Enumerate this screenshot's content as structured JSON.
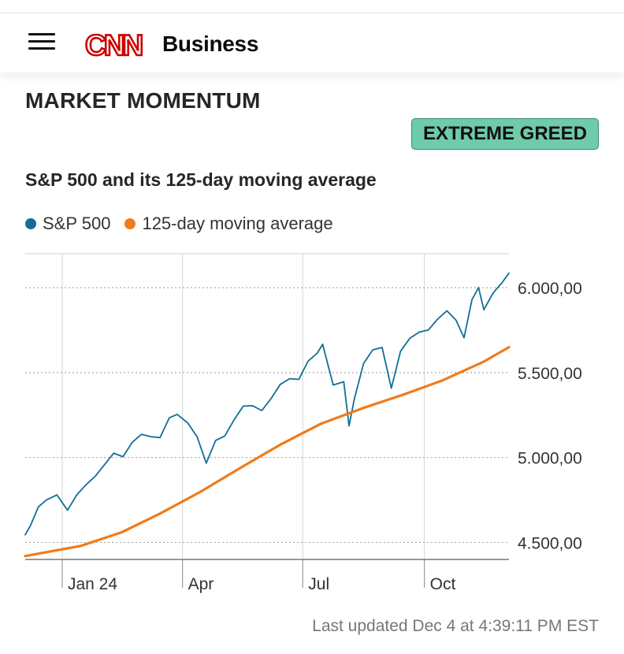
{
  "header": {
    "menu_icon": "hamburger-menu-icon",
    "logo_icon": "cnn-logo-icon",
    "logo_text": "CNN",
    "brand": "Business",
    "logo_color": "#cc0000"
  },
  "section": {
    "title": "MARKET MOMENTUM",
    "rating": "EXTREME GREED",
    "rating_color": "#6fcba9"
  },
  "chart_data": {
    "type": "line",
    "title": "S&P 500 and its 125-day moving average",
    "xlabel": "",
    "ylabel": "",
    "x_ticks": [
      "Jan 24",
      "Apr",
      "Jul",
      "Oct"
    ],
    "y_ticks": [
      "4.500,00",
      "5.000,00",
      "5.500,00",
      "6.000,00"
    ],
    "y_tick_values": [
      4500,
      5000,
      5500,
      6000
    ],
    "ylim": [
      4400,
      6200
    ],
    "x_range": [
      "2023-12-04",
      "2024-12-04"
    ],
    "grid": true,
    "legend_position": "top-left",
    "series": [
      {
        "name": "S&P 500",
        "color": "#136e96",
        "x": [
          "2023-12-04",
          "2023-12-08",
          "2023-12-14",
          "2023-12-20",
          "2023-12-28",
          "2024-01-05",
          "2024-01-12",
          "2024-01-19",
          "2024-01-26",
          "2024-02-02",
          "2024-02-09",
          "2024-02-16",
          "2024-02-23",
          "2024-03-01",
          "2024-03-08",
          "2024-03-15",
          "2024-03-22",
          "2024-03-28",
          "2024-04-05",
          "2024-04-12",
          "2024-04-19",
          "2024-04-26",
          "2024-05-03",
          "2024-05-10",
          "2024-05-17",
          "2024-05-24",
          "2024-05-31",
          "2024-06-07",
          "2024-06-14",
          "2024-06-21",
          "2024-06-28",
          "2024-07-05",
          "2024-07-12",
          "2024-07-16",
          "2024-07-24",
          "2024-08-01",
          "2024-08-05",
          "2024-08-09",
          "2024-08-16",
          "2024-08-23",
          "2024-08-30",
          "2024-09-06",
          "2024-09-13",
          "2024-09-20",
          "2024-09-27",
          "2024-10-04",
          "2024-10-11",
          "2024-10-18",
          "2024-10-25",
          "2024-10-31",
          "2024-11-06",
          "2024-11-11",
          "2024-11-15",
          "2024-11-22",
          "2024-11-29",
          "2024-12-04"
        ],
        "values": [
          4545,
          4600,
          4710,
          4750,
          4780,
          4690,
          4780,
          4840,
          4890,
          4958,
          5026,
          5005,
          5090,
          5137,
          5123,
          5117,
          5234,
          5254,
          5204,
          5123,
          4967,
          5100,
          5127,
          5222,
          5303,
          5305,
          5277,
          5347,
          5431,
          5464,
          5460,
          5567,
          5615,
          5667,
          5427,
          5446,
          5186,
          5344,
          5554,
          5634,
          5648,
          5408,
          5626,
          5702,
          5738,
          5751,
          5815,
          5864,
          5808,
          5705,
          5929,
          6001,
          5870,
          5969,
          6032,
          6086
        ]
      },
      {
        "name": "125-day moving average",
        "color": "#f07b1a",
        "x": [
          "2023-12-04",
          "2024-01-15",
          "2024-02-15",
          "2024-03-15",
          "2024-04-15",
          "2024-05-15",
          "2024-06-15",
          "2024-07-15",
          "2024-08-15",
          "2024-09-15",
          "2024-10-15",
          "2024-11-15",
          "2024-12-04"
        ],
        "values": [
          4420,
          4480,
          4560,
          4670,
          4800,
          4940,
          5080,
          5200,
          5290,
          5370,
          5455,
          5565,
          5650
        ]
      }
    ]
  },
  "footer": {
    "last_updated": "Last updated Dec 4 at 4:39:11 PM EST"
  }
}
